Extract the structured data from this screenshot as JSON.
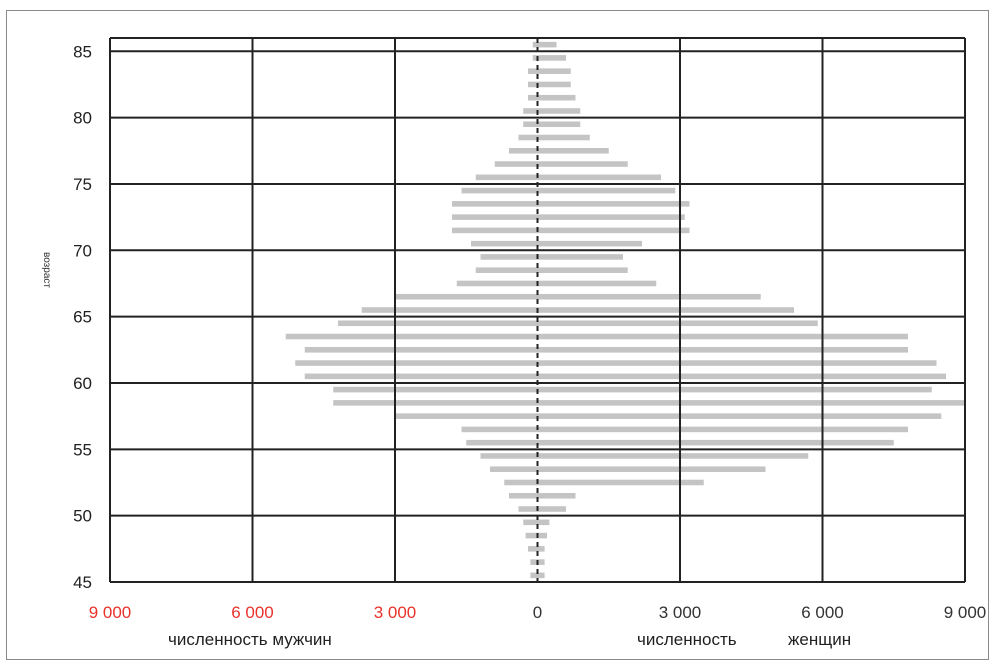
{
  "chart_data": {
    "type": "bar",
    "orientation": "horizontal-pyramid",
    "y_axis": {
      "label": "возраст",
      "ticks": [
        45,
        50,
        55,
        60,
        65,
        70,
        75,
        80,
        85
      ],
      "range": [
        45,
        86
      ]
    },
    "x_axis": {
      "ticks": [
        {
          "label": "9 000",
          "value": -9000,
          "color": "#e8322a"
        },
        {
          "label": "6 000",
          "value": -6000,
          "color": "#e8322a"
        },
        {
          "label": "3 000",
          "value": -3000,
          "color": "#e8322a"
        },
        {
          "label": "0",
          "value": 0,
          "color": "#333333"
        },
        {
          "label": "3 000",
          "value": 3000,
          "color": "#333333"
        },
        {
          "label": "6 000",
          "value": 6000,
          "color": "#333333"
        },
        {
          "label": "9 000",
          "value": 9000,
          "color": "#333333"
        }
      ],
      "range": [
        -9000,
        9000
      ],
      "male_label": "численность мужчин",
      "female_label_a": "численность",
      "female_label_b": "женщин"
    },
    "grid": true,
    "bar_color": "#c4c4c4",
    "series": [
      {
        "name": "численность мужчин",
        "points": [
          [
            45.5,
            150
          ],
          [
            46.5,
            150
          ],
          [
            47.5,
            200
          ],
          [
            48.5,
            250
          ],
          [
            49.5,
            300
          ],
          [
            50.5,
            400
          ],
          [
            51.5,
            600
          ],
          [
            52.5,
            700
          ],
          [
            53.5,
            1000
          ],
          [
            54.5,
            1200
          ],
          [
            55.5,
            1500
          ],
          [
            56.5,
            1600
          ],
          [
            57.5,
            3000
          ],
          [
            58.5,
            4300
          ],
          [
            59.5,
            4300
          ],
          [
            60.5,
            4900
          ],
          [
            61.5,
            5100
          ],
          [
            62.5,
            4900
          ],
          [
            63.5,
            5300
          ],
          [
            64.5,
            4200
          ],
          [
            65.5,
            3700
          ],
          [
            66.5,
            3000
          ],
          [
            67.5,
            1700
          ],
          [
            68.5,
            1300
          ],
          [
            69.5,
            1200
          ],
          [
            70.5,
            1400
          ],
          [
            71.5,
            1800
          ],
          [
            72.5,
            1800
          ],
          [
            73.5,
            1800
          ],
          [
            74.5,
            1600
          ],
          [
            75.5,
            1300
          ],
          [
            76.5,
            900
          ],
          [
            77.5,
            600
          ],
          [
            78.5,
            400
          ],
          [
            79.5,
            300
          ],
          [
            80.5,
            300
          ],
          [
            81.5,
            200
          ],
          [
            82.5,
            200
          ],
          [
            83.5,
            200
          ],
          [
            84.5,
            100
          ],
          [
            85.5,
            100
          ]
        ]
      },
      {
        "name": "численность женщин",
        "points": [
          [
            45.5,
            150
          ],
          [
            46.5,
            150
          ],
          [
            47.5,
            150
          ],
          [
            48.5,
            200
          ],
          [
            49.5,
            250
          ],
          [
            50.5,
            600
          ],
          [
            51.5,
            800
          ],
          [
            52.5,
            3500
          ],
          [
            53.5,
            4800
          ],
          [
            54.5,
            5700
          ],
          [
            55.5,
            7500
          ],
          [
            56.5,
            7800
          ],
          [
            57.5,
            8500
          ],
          [
            58.5,
            9000
          ],
          [
            59.5,
            8300
          ],
          [
            60.5,
            8600
          ],
          [
            61.5,
            8400
          ],
          [
            62.5,
            7800
          ],
          [
            63.5,
            7800
          ],
          [
            64.5,
            5900
          ],
          [
            65.5,
            5400
          ],
          [
            66.5,
            4700
          ],
          [
            67.5,
            2500
          ],
          [
            68.5,
            1900
          ],
          [
            69.5,
            1800
          ],
          [
            70.5,
            2200
          ],
          [
            71.5,
            3200
          ],
          [
            72.5,
            3100
          ],
          [
            73.5,
            3200
          ],
          [
            74.5,
            2900
          ],
          [
            75.5,
            2600
          ],
          [
            76.5,
            1900
          ],
          [
            77.5,
            1500
          ],
          [
            78.5,
            1100
          ],
          [
            79.5,
            900
          ],
          [
            80.5,
            900
          ],
          [
            81.5,
            800
          ],
          [
            82.5,
            700
          ],
          [
            83.5,
            700
          ],
          [
            84.5,
            600
          ],
          [
            85.5,
            400
          ]
        ]
      }
    ]
  }
}
